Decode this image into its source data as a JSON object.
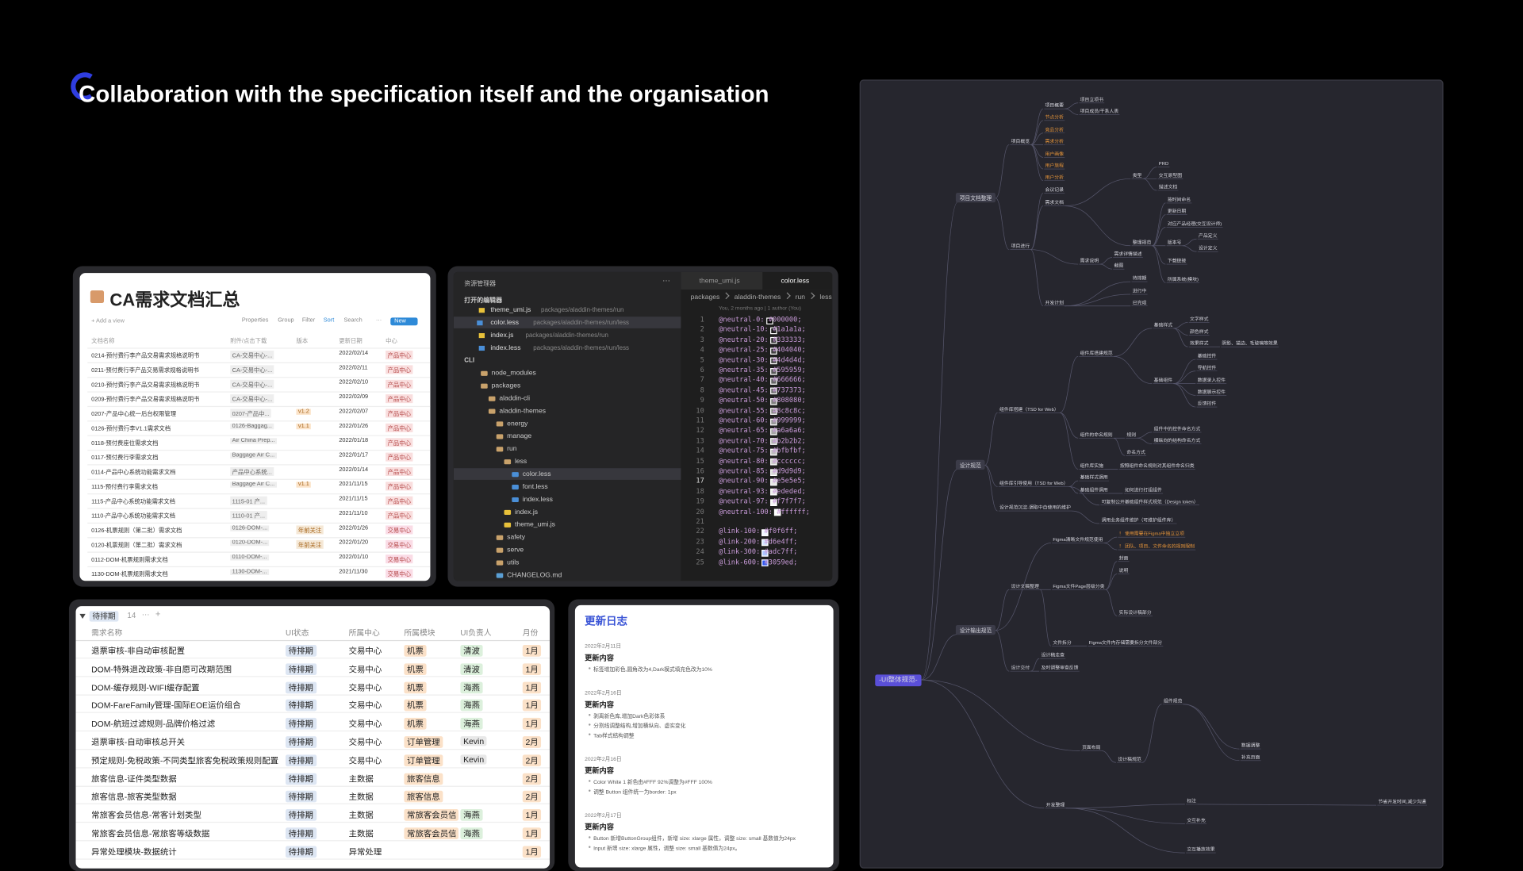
{
  "title": "Collaboration with the specification itself and the organisation",
  "doc_table": {
    "title": "CA需求文档汇总",
    "add_view": "+ Add a view",
    "toolbar": [
      "Properties",
      "Group",
      "Filter",
      "Sort",
      "Search",
      "···",
      "New"
    ],
    "columns": [
      "文档名称",
      "附件/点击下载",
      "版本",
      "更新日期",
      "中心"
    ],
    "rows": [
      [
        "0214-预付费行李产品交易需求规格说明书",
        "CA-交易中心-...",
        null,
        "2022/02/14",
        "产品中心"
      ],
      [
        "0211-预付费行李产品交易需求规格说明书",
        "CA-交易中心-...",
        null,
        "2022/02/11",
        "产品中心"
      ],
      [
        "0210-预付费行李产品交易需求规格说明书",
        "CA-交易中心-...",
        null,
        "2022/02/10",
        "产品中心"
      ],
      [
        "0209-预付费行李产品交易需求规格说明书",
        "CA-交易中心-...",
        null,
        "2022/02/09",
        "产品中心"
      ],
      [
        "0207-产品中心统一后台权限管理",
        "0207-产品中...",
        "v1.2",
        "2022/02/07",
        "产品中心"
      ],
      [
        "0126-预付费行李V1.1需求文档",
        "0126-Baggag...",
        "v1.1",
        "2022/01/26",
        "产品中心"
      ],
      [
        "0118-预付费座位需求文档",
        "Air China Prep...",
        null,
        "2022/01/18",
        "产品中心"
      ],
      [
        "0117-预付费行李需求文档",
        "Baggage Air C...",
        null,
        "2022/01/17",
        "产品中心"
      ],
      [
        "0114-产品中心系统功能需求文档",
        "产品中心系统...",
        null,
        "2022/01/14",
        "产品中心"
      ],
      [
        "1115-预付费行李需求文档",
        "Baggage Air C...",
        "v1.1",
        "2021/11/15",
        "产品中心"
      ],
      [
        "1115-产品中心系统功能需求文档",
        "1115-01 产...",
        null,
        "2021/11/15",
        "产品中心"
      ],
      [
        "1110-产品中心系统功能需求文档",
        "1110-01 产...",
        null,
        "2021/11/10",
        "产品中心"
      ],
      [
        "0126-机票规则（第二批）需求文档",
        "0126-DOM-...",
        "年前关注",
        "2022/01/26",
        "交易中心"
      ],
      [
        "0120-机票规则（第二批）需求文档",
        "0120-DOM-...",
        "年前关注",
        "2022/01/20",
        "交易中心"
      ],
      [
        "0112-DOM-机票规则需求文档",
        "0110-DOM-...",
        null,
        "2022/01/10",
        "交易中心"
      ],
      [
        "1130-DOM-机票规则需求文档",
        "1130-DOM-...",
        null,
        "2021/11/30",
        "交易中心"
      ]
    ]
  },
  "editor": {
    "explorer": "资源管理器",
    "more": "···",
    "open_editors": "打开的编辑器",
    "open_files": [
      {
        "name": "theme_umi.js",
        "path": "packages/aladdin-themes/run"
      },
      {
        "name": "color.less",
        "path": "packages/aladdin-themes/run/less"
      },
      {
        "name": "index.js",
        "path": "packages/aladdin-themes/run"
      },
      {
        "name": "index.less",
        "path": "packages/aladdin-themes/run/less"
      }
    ],
    "project": "CLI",
    "tree": [
      {
        "name": "node_modules"
      },
      {
        "name": "packages",
        "children": [
          {
            "name": "aladdin-cli"
          },
          {
            "name": "aladdin-themes",
            "children": [
              {
                "name": "energy"
              },
              {
                "name": "manage"
              },
              {
                "name": "run",
                "children": [
                  {
                    "name": "less",
                    "children": [
                      {
                        "name": "color.less"
                      },
                      {
                        "name": "font.less"
                      },
                      {
                        "name": "index.less"
                      }
                    ]
                  },
                  {
                    "name": "index.js"
                  },
                  {
                    "name": "theme_umi.js"
                  }
                ]
              },
              {
                "name": "safety"
              },
              {
                "name": "serve"
              },
              {
                "name": "utils"
              },
              {
                "name": "CHANGELOG.md"
              }
            ]
          }
        ]
      }
    ],
    "tabs": [
      "theme_umi.js",
      "color.less"
    ],
    "breadcrumb": [
      "packages",
      "aladdin-themes",
      "run",
      "less"
    ],
    "blame": "You, 2 months ago | 1 author (You)",
    "lines": [
      {
        "n": 1,
        "code": "@neutral-0: #000000;"
      },
      {
        "n": 2,
        "code": "@neutral-10: #1a1a1a;"
      },
      {
        "n": 3,
        "code": "@neutral-20: #333333;"
      },
      {
        "n": 4,
        "code": "@neutral-25: #404040;"
      },
      {
        "n": 5,
        "code": "@neutral-30: #4d4d4d;"
      },
      {
        "n": 6,
        "code": "@neutral-35: #595959;"
      },
      {
        "n": 7,
        "code": "@neutral-40: #666666;"
      },
      {
        "n": 8,
        "code": "@neutral-45: #737373;"
      },
      {
        "n": 9,
        "code": "@neutral-50: #808080;"
      },
      {
        "n": 10,
        "code": "@neutral-55: #8c8c8c;"
      },
      {
        "n": 11,
        "code": "@neutral-60: #999999;"
      },
      {
        "n": 12,
        "code": "@neutral-65: #a6a6a6;"
      },
      {
        "n": 13,
        "code": "@neutral-70: #b2b2b2;"
      },
      {
        "n": 14,
        "code": "@neutral-75: #bfbfbf;"
      },
      {
        "n": 15,
        "code": "@neutral-80: #cccccc;"
      },
      {
        "n": 16,
        "code": "@neutral-85: #d9d9d9;"
      },
      {
        "n": 17,
        "code": "@neutral-90: #e5e5e5;"
      },
      {
        "n": 18,
        "code": "@neutral-93: #ededed;"
      },
      {
        "n": 19,
        "code": "@neutral-97: #f7f7f7;"
      },
      {
        "n": 20,
        "code": "@neutral-100: #ffffff;"
      },
      {
        "n": 21,
        "code": null
      },
      {
        "n": 22,
        "code": "@link-100: #f0f6ff;"
      },
      {
        "n": 23,
        "code": "@link-200: #d6e4ff;"
      },
      {
        "n": 24,
        "code": "@link-300: #adc7ff;"
      },
      {
        "n": 25,
        "code": "@link-600: #3059ed;"
      }
    ]
  },
  "task_table": {
    "group": "待排期",
    "count": 14,
    "more": "···",
    "add": "+",
    "columns": [
      "需求名称",
      "UI状态",
      "所属中心",
      "所属模块",
      "UI负责人",
      "月份"
    ],
    "rows": [
      [
        "退票审核-非自动审核配置",
        "待排期",
        "交易中心",
        "机票",
        "清波",
        "1月"
      ],
      [
        "DOM-特殊退改政策-非自愿可改期范围",
        "待排期",
        "交易中心",
        "机票",
        "清波",
        "1月"
      ],
      [
        "DOM-缓存规则-WIFI缓存配置",
        "待排期",
        "交易中心",
        "机票",
        "海燕",
        "1月"
      ],
      [
        "DOM-FareFamily管理-国际EOE运价组合",
        "待排期",
        "交易中心",
        "机票",
        "海燕",
        "1月"
      ],
      [
        "DOM-航班过滤规则-品牌价格过滤",
        "待排期",
        "交易中心",
        "机票",
        "海燕",
        "1月"
      ],
      [
        "退票审核-自动审核总开关",
        "待排期",
        "交易中心",
        "订单管理",
        "Kevin",
        "2月"
      ],
      [
        "预定规则-免税政策-不同类型旅客免税政策规则配置",
        "待排期",
        "交易中心",
        "订单管理",
        "Kevin",
        "2月"
      ],
      [
        "旅客信息-证件类型数据",
        "待排期",
        "主数据",
        "旅客信息",
        null,
        "2月"
      ],
      [
        "旅客信息-旅客类型数据",
        "待排期",
        "主数据",
        "旅客信息",
        null,
        "2月"
      ],
      [
        "常旅客会员信息-常客计划类型",
        "待排期",
        "主数据",
        "常旅客会员信",
        "海燕",
        "1月"
      ],
      [
        "常旅客会员信息-常旅客等级数据",
        "待排期",
        "主数据",
        "常旅客会员信",
        "海燕",
        "1月"
      ],
      [
        "异常处理模块-数据统计",
        "待排期",
        "异常处理",
        null,
        null,
        "1月"
      ]
    ]
  },
  "changelog": {
    "title": "更新日志",
    "entries": [
      {
        "date": "2022年2月11日",
        "heading": "更新内容",
        "items": [
          "标签增加彩色,圆角改为4,Dark模式填充色改为10%"
        ]
      },
      {
        "date": "2022年2月16日",
        "heading": "更新内容",
        "items": [
          "剥离新色库,增加Dark色彩体系",
          "分割线调整结构,增加横纵向、虚实变化",
          "Tab样式结构调整"
        ]
      },
      {
        "date": "2022年2月16日",
        "heading": "更新内容",
        "items": [
          "Color White 1 新色由#FFF 92%调整为#FFF 100%",
          "调整 Button 组件统一为border: 1px"
        ]
      },
      {
        "date": "2022年2月17日",
        "heading": "更新内容",
        "items": [
          "Button 新增ButtonGroup组件，新增 size: xlarge 属性，调整 size: small 基数值为24px",
          "Input 新增 size: xlarge 属性，调整 size: small 基数值为24px。"
        ]
      }
    ]
  },
  "mindmap": {
    "nodes": [
      "-UI整体规范-",
      "项目文档整理",
      "设计规范",
      "设计输出规范",
      "项目概览",
      "项目进行",
      "项目概要",
      "项目立项书",
      "项目成员/干系人表",
      "节点分析",
      "竞品分析",
      "需求分析",
      "用户画像",
      "用户旅程",
      "用户分析",
      "会议记录",
      "需求文档",
      "需求说明",
      "开发计划",
      "PRD",
      "交互原型图",
      "描述文档",
      "类型",
      "整理规范",
      "按时间命名",
      "更新日期",
      "对应产品经理(交互设计师)",
      "版本号",
      "产品定义",
      "设计定义",
      "需求详情描述",
      "截图",
      "下载链接",
      "所属系统(模块)",
      "待排期",
      "进行中",
      "已完成",
      "组件库搭建（TSD for Web）",
      "组件库引导使用（TSD for Web）",
      "组件库搭建规范",
      "基础样式",
      "文字样式",
      "颜色样式",
      "效果样式",
      "阴影、描边、毛玻璃等效果",
      "基础组件",
      "基础控件",
      "导航控件",
      "数据录入控件",
      "数据展示控件",
      "反馈控件",
      "组件的命名规则",
      "规则",
      "组件中的控件命名方式",
      "横纵向的结构命名方式",
      "命名方式",
      "组件库实施",
      "按照组件命名规则对其组件命名归类",
      "基础样式调用",
      "基础组件调用",
      "如何进行打组组件",
      "可复制公开基础组件样式规范（Design token）",
      "设计规范沉淀-调取中自使用的维护",
      "调用业务组件维护（可维护组件库）",
      "Figma清晰文件规范使用",
      "！ 使用需要在Figma中独立立项",
      "！ 团队、项目、文件命名的规则限制",
      "设计文稿整理",
      "Figma文件Page层级分类",
      "封面",
      "说明",
      "实际设计稿部分",
      "文件拆分",
      "Figma文件内存储需要拆分文件部分",
      "设计交付",
      "设计稿走查",
      "及时调整审查反馈",
      "页面布局",
      "设计稿规范",
      "开发整理",
      "组件规范",
      "标注",
      "交互补充",
      "交互播放效果",
      "节省开发时间,减少沟通",
      "数据调整",
      "补充页面"
    ]
  }
}
